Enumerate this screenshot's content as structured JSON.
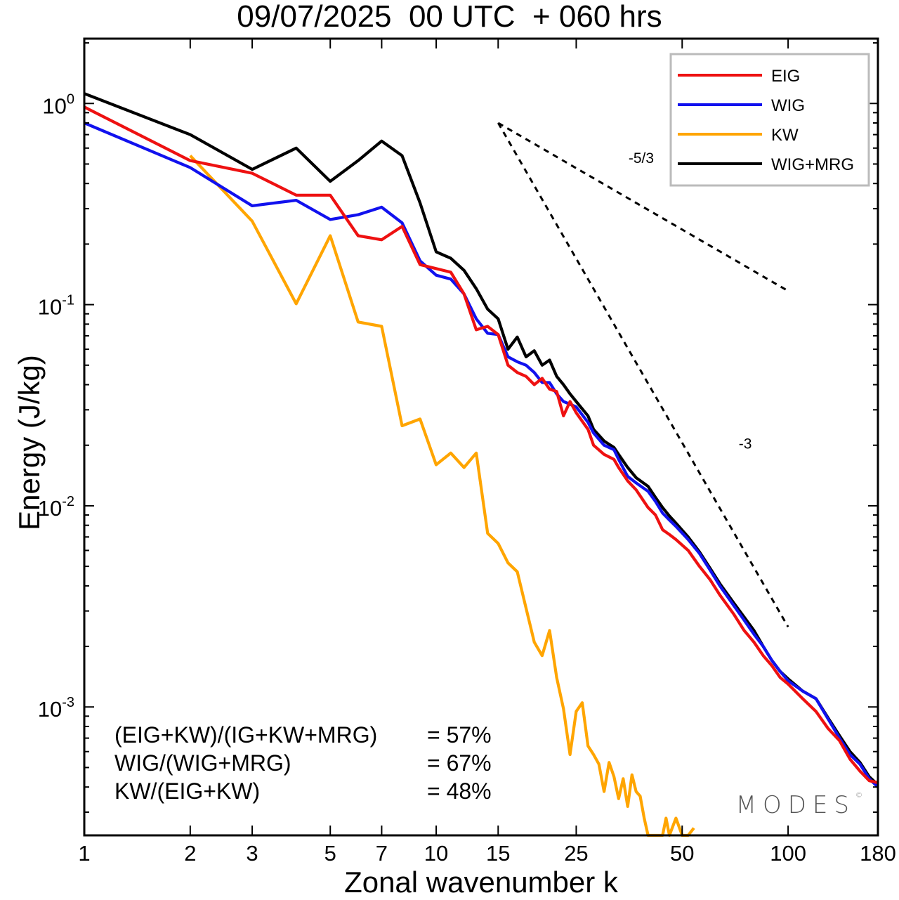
{
  "title": "09/07/2025  00 UTC  + 060 hrs",
  "colors": {
    "EIG": "#ee1111",
    "WIG": "#1111ee",
    "KW": "#ffa500",
    "WIG+MRG": "#000000"
  },
  "chart_data": {
    "type": "line",
    "xscale": "log",
    "yscale": "log",
    "xlabel": "Zonal wavenumber k",
    "ylabel": "Energy (J/kg)",
    "xlim": [
      1,
      180
    ],
    "ylim": [
      0.00023,
      2.1
    ],
    "xticks": [
      1,
      2,
      3,
      5,
      7,
      10,
      15,
      25,
      50,
      100,
      180
    ],
    "yticks": [
      {
        "value": 1,
        "label": "10",
        "exp": "0"
      },
      {
        "value": 0.1,
        "label": "10",
        "exp": "-1"
      },
      {
        "value": 0.01,
        "label": "10",
        "exp": "-2"
      },
      {
        "value": 0.001,
        "label": "10",
        "exp": "-3"
      }
    ],
    "legend_position": "top-right",
    "series": [
      {
        "name": "EIG",
        "color": "#ee1111",
        "points": [
          [
            1,
            0.96
          ],
          [
            2,
            0.52
          ],
          [
            3,
            0.45
          ],
          [
            4,
            0.35
          ],
          [
            5,
            0.35
          ],
          [
            6,
            0.22
          ],
          [
            7,
            0.21
          ],
          [
            8,
            0.245
          ],
          [
            9,
            0.158
          ],
          [
            10,
            0.151
          ],
          [
            11,
            0.145
          ],
          [
            12,
            0.113
          ],
          [
            13,
            0.075
          ],
          [
            14,
            0.078
          ],
          [
            15,
            0.071
          ],
          [
            16,
            0.05
          ],
          [
            17,
            0.046
          ],
          [
            18,
            0.044
          ],
          [
            19,
            0.04
          ],
          [
            20,
            0.043
          ],
          [
            21,
            0.038
          ],
          [
            22,
            0.037
          ],
          [
            23,
            0.028
          ],
          [
            24,
            0.033
          ],
          [
            25,
            0.029
          ],
          [
            27,
            0.024
          ],
          [
            28,
            0.02
          ],
          [
            30,
            0.018
          ],
          [
            32,
            0.017
          ],
          [
            33,
            0.0155
          ],
          [
            35,
            0.0133
          ],
          [
            37,
            0.012
          ],
          [
            40,
            0.0098
          ],
          [
            42,
            0.009
          ],
          [
            44,
            0.0076
          ],
          [
            46,
            0.0072
          ],
          [
            48,
            0.0068
          ],
          [
            52,
            0.006
          ],
          [
            56,
            0.005
          ],
          [
            60,
            0.0043
          ],
          [
            64,
            0.0036
          ],
          [
            70,
            0.0029
          ],
          [
            75,
            0.0024
          ],
          [
            80,
            0.0021
          ],
          [
            85,
            0.0018
          ],
          [
            90,
            0.0016
          ],
          [
            95,
            0.0014
          ],
          [
            100,
            0.0013
          ],
          [
            110,
            0.0011
          ],
          [
            120,
            0.00095
          ],
          [
            130,
            0.00078
          ],
          [
            140,
            0.00068
          ],
          [
            150,
            0.00055
          ],
          [
            160,
            0.00048
          ],
          [
            170,
            0.00043
          ],
          [
            180,
            0.00042
          ]
        ]
      },
      {
        "name": "WIG",
        "color": "#1111ee",
        "points": [
          [
            1,
            0.8
          ],
          [
            2,
            0.48
          ],
          [
            3,
            0.31
          ],
          [
            4,
            0.33
          ],
          [
            5,
            0.265
          ],
          [
            6,
            0.28
          ],
          [
            7,
            0.305
          ],
          [
            8,
            0.255
          ],
          [
            9,
            0.165
          ],
          [
            10,
            0.14
          ],
          [
            11,
            0.134
          ],
          [
            12,
            0.113
          ],
          [
            13,
            0.085
          ],
          [
            14,
            0.072
          ],
          [
            15,
            0.071
          ],
          [
            16,
            0.055
          ],
          [
            17,
            0.052
          ],
          [
            18,
            0.05
          ],
          [
            19,
            0.046
          ],
          [
            20,
            0.041
          ],
          [
            21,
            0.041
          ],
          [
            22,
            0.036
          ],
          [
            23,
            0.033
          ],
          [
            24,
            0.032
          ],
          [
            25,
            0.031
          ],
          [
            27,
            0.026
          ],
          [
            28,
            0.023
          ],
          [
            30,
            0.02
          ],
          [
            32,
            0.019
          ],
          [
            33,
            0.017
          ],
          [
            35,
            0.014
          ],
          [
            37,
            0.013
          ],
          [
            40,
            0.0118
          ],
          [
            42,
            0.0105
          ],
          [
            44,
            0.0092
          ],
          [
            46,
            0.0085
          ],
          [
            48,
            0.0079
          ],
          [
            52,
            0.0068
          ],
          [
            56,
            0.0058
          ],
          [
            60,
            0.0048
          ],
          [
            64,
            0.004
          ],
          [
            70,
            0.0032
          ],
          [
            75,
            0.0027
          ],
          [
            80,
            0.0023
          ],
          [
            85,
            0.002
          ],
          [
            90,
            0.0017
          ],
          [
            95,
            0.0015
          ],
          [
            100,
            0.00135
          ],
          [
            110,
            0.0012
          ],
          [
            120,
            0.0011
          ],
          [
            130,
            0.00087
          ],
          [
            140,
            0.0007
          ],
          [
            150,
            0.00058
          ],
          [
            160,
            0.00052
          ],
          [
            170,
            0.00044
          ],
          [
            180,
            0.0004
          ]
        ]
      },
      {
        "name": "KW",
        "color": "#ffa500",
        "points": [
          [
            2,
            0.55
          ],
          [
            3,
            0.26
          ],
          [
            4,
            0.101
          ],
          [
            5,
            0.22
          ],
          [
            6,
            0.082
          ],
          [
            7,
            0.078
          ],
          [
            8,
            0.025
          ],
          [
            9,
            0.027
          ],
          [
            10,
            0.016
          ],
          [
            11,
            0.0183
          ],
          [
            12,
            0.0155
          ],
          [
            13,
            0.0183
          ],
          [
            14,
            0.0073
          ],
          [
            15,
            0.0065
          ],
          [
            16,
            0.0052
          ],
          [
            17,
            0.0047
          ],
          [
            18,
            0.0031
          ],
          [
            19,
            0.0021
          ],
          [
            20,
            0.0018
          ],
          [
            21,
            0.0024
          ],
          [
            22,
            0.0014
          ],
          [
            23,
            0.00098
          ],
          [
            24,
            0.00058
          ],
          [
            25,
            0.00095
          ],
          [
            26,
            0.00105
          ],
          [
            27,
            0.00064
          ],
          [
            28,
            0.00058
          ],
          [
            29,
            0.00052
          ],
          [
            30,
            0.00038
          ],
          [
            31,
            0.00053
          ],
          [
            32,
            0.00045
          ],
          [
            33,
            0.00035
          ],
          [
            34,
            0.00044
          ],
          [
            35,
            0.00032
          ],
          [
            36,
            0.00046
          ],
          [
            37,
            0.00038
          ],
          [
            38,
            0.00036
          ],
          [
            39,
            0.00028
          ],
          [
            40,
            0.00023
          ],
          [
            42,
            0.00023
          ],
          [
            44,
            0.00023
          ],
          [
            45,
            0.00028
          ],
          [
            46,
            0.00023
          ],
          [
            48,
            0.00028
          ],
          [
            50,
            0.00023
          ],
          [
            52,
            0.00023
          ],
          [
            54,
            0.00025
          ]
        ]
      },
      {
        "name": "WIG+MRG",
        "color": "#000000",
        "points": [
          [
            1,
            1.12
          ],
          [
            2,
            0.7
          ],
          [
            3,
            0.47
          ],
          [
            4,
            0.6
          ],
          [
            5,
            0.41
          ],
          [
            6,
            0.52
          ],
          [
            7,
            0.65
          ],
          [
            8,
            0.55
          ],
          [
            9,
            0.32
          ],
          [
            10,
            0.183
          ],
          [
            11,
            0.17
          ],
          [
            12,
            0.148
          ],
          [
            13,
            0.12
          ],
          [
            14,
            0.095
          ],
          [
            15,
            0.085
          ],
          [
            16,
            0.06
          ],
          [
            17,
            0.069
          ],
          [
            18,
            0.055
          ],
          [
            19,
            0.059
          ],
          [
            20,
            0.05
          ],
          [
            21,
            0.053
          ],
          [
            22,
            0.044
          ],
          [
            23,
            0.04
          ],
          [
            24,
            0.036
          ],
          [
            25,
            0.033
          ],
          [
            27,
            0.028
          ],
          [
            28,
            0.024
          ],
          [
            30,
            0.021
          ],
          [
            32,
            0.0195
          ],
          [
            33,
            0.018
          ],
          [
            35,
            0.0155
          ],
          [
            37,
            0.0138
          ],
          [
            40,
            0.0125
          ],
          [
            42,
            0.011
          ],
          [
            44,
            0.0098
          ],
          [
            46,
            0.0089
          ],
          [
            48,
            0.0082
          ],
          [
            52,
            0.007
          ],
          [
            56,
            0.0059
          ],
          [
            60,
            0.0049
          ],
          [
            64,
            0.0041
          ],
          [
            70,
            0.0033
          ],
          [
            75,
            0.0028
          ],
          [
            80,
            0.0024
          ],
          [
            85,
            0.002
          ],
          [
            90,
            0.0017
          ],
          [
            95,
            0.0015
          ],
          [
            100,
            0.00138
          ],
          [
            110,
            0.0012
          ],
          [
            120,
            0.0011
          ],
          [
            130,
            0.00088
          ],
          [
            140,
            0.00072
          ],
          [
            150,
            0.0006
          ],
          [
            160,
            0.00053
          ],
          [
            170,
            0.00045
          ],
          [
            180,
            0.00041
          ]
        ]
      }
    ],
    "reference_lines": [
      {
        "label": "-5/3",
        "points": [
          [
            15,
            0.8
          ],
          [
            100,
            0.117
          ]
        ]
      },
      {
        "label": "-3",
        "points": [
          [
            15,
            0.8
          ],
          [
            100,
            0.0025
          ]
        ]
      }
    ]
  },
  "stats": [
    {
      "label": "(EIG+KW)/(IG+KW+MRG)",
      "value": "= 57%"
    },
    {
      "label": "WIG/(WIG+MRG)",
      "value": "= 67%"
    },
    {
      "label": "KW/(EIG+KW)",
      "value": "= 48%"
    }
  ],
  "brand": {
    "name": "MODES",
    "mark": "©"
  }
}
